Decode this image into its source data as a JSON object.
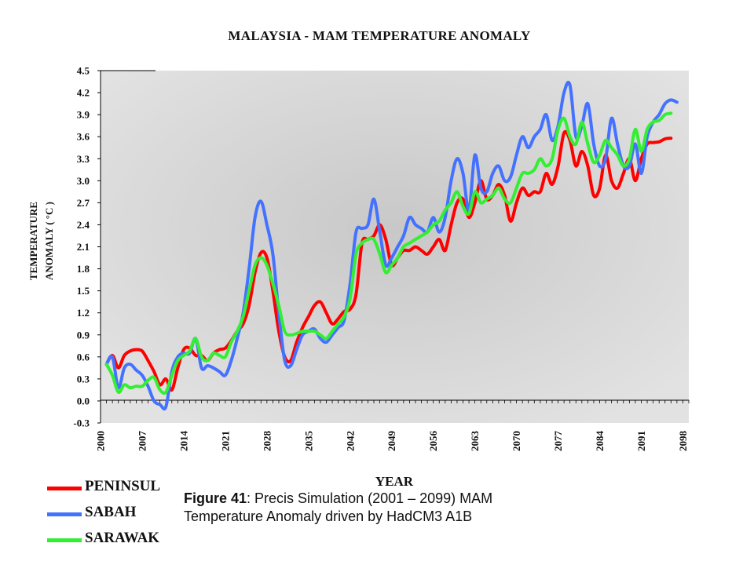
{
  "chart_data": {
    "type": "line",
    "title": "MALAYSIA - MAM TEMPERATURE ANOMALY",
    "ylabel_lines": [
      "TEMPERATURE",
      "ANOMALY ( °C )"
    ],
    "xlabel": "YEAR",
    "ylim": [
      -0.3,
      4.5
    ],
    "xlim": [
      2000,
      2099
    ],
    "yticks": [
      "-0.3",
      "0.0",
      "0.3",
      "0.6",
      "0.9",
      "1.2",
      "1.5",
      "1.8",
      "2.1",
      "2.4",
      "2.7",
      "3.0",
      "3.3",
      "3.6",
      "3.9",
      "4.2",
      "4.5"
    ],
    "xticks": [
      "2000",
      "2007",
      "2014",
      "2021",
      "2028",
      "2035",
      "2042",
      "2049",
      "2056",
      "2063",
      "2070",
      "2077",
      "2084",
      "2091",
      "2098"
    ],
    "series": [
      {
        "name": "PENINSUL",
        "color": "#ff0000",
        "points": [
          [
            2001,
            0.5
          ],
          [
            2002,
            0.62
          ],
          [
            2003,
            0.45
          ],
          [
            2004,
            0.62
          ],
          [
            2005,
            0.68
          ],
          [
            2006,
            0.7
          ],
          [
            2007,
            0.68
          ],
          [
            2008,
            0.55
          ],
          [
            2009,
            0.4
          ],
          [
            2010,
            0.22
          ],
          [
            2011,
            0.3
          ],
          [
            2012,
            0.15
          ],
          [
            2013,
            0.45
          ],
          [
            2014,
            0.7
          ],
          [
            2015,
            0.72
          ],
          [
            2016,
            0.62
          ],
          [
            2017,
            0.62
          ],
          [
            2018,
            0.55
          ],
          [
            2019,
            0.65
          ],
          [
            2020,
            0.7
          ],
          [
            2021,
            0.72
          ],
          [
            2022,
            0.82
          ],
          [
            2023,
            0.95
          ],
          [
            2024,
            1.05
          ],
          [
            2025,
            1.3
          ],
          [
            2026,
            1.75
          ],
          [
            2027,
            2.02
          ],
          [
            2028,
            1.95
          ],
          [
            2029,
            1.5
          ],
          [
            2030,
            0.95
          ],
          [
            2031,
            0.6
          ],
          [
            2032,
            0.55
          ],
          [
            2033,
            0.8
          ],
          [
            2034,
            1.0
          ],
          [
            2035,
            1.15
          ],
          [
            2036,
            1.3
          ],
          [
            2037,
            1.35
          ],
          [
            2038,
            1.2
          ],
          [
            2039,
            1.05
          ],
          [
            2040,
            1.12
          ],
          [
            2041,
            1.22
          ],
          [
            2042,
            1.25
          ],
          [
            2043,
            1.45
          ],
          [
            2044,
            2.15
          ],
          [
            2045,
            2.2
          ],
          [
            2046,
            2.25
          ],
          [
            2047,
            2.4
          ],
          [
            2048,
            2.2
          ],
          [
            2049,
            1.85
          ],
          [
            2050,
            1.95
          ],
          [
            2051,
            2.05
          ],
          [
            2052,
            2.05
          ],
          [
            2053,
            2.1
          ],
          [
            2054,
            2.05
          ],
          [
            2055,
            2.0
          ],
          [
            2056,
            2.1
          ],
          [
            2057,
            2.2
          ],
          [
            2058,
            2.05
          ],
          [
            2059,
            2.4
          ],
          [
            2060,
            2.7
          ],
          [
            2061,
            2.75
          ],
          [
            2062,
            2.5
          ],
          [
            2063,
            2.7
          ],
          [
            2064,
            3.0
          ],
          [
            2065,
            2.75
          ],
          [
            2066,
            2.8
          ],
          [
            2067,
            2.95
          ],
          [
            2068,
            2.8
          ],
          [
            2069,
            2.45
          ],
          [
            2070,
            2.7
          ],
          [
            2071,
            2.9
          ],
          [
            2072,
            2.8
          ],
          [
            2073,
            2.85
          ],
          [
            2074,
            2.85
          ],
          [
            2075,
            3.1
          ],
          [
            2076,
            2.95
          ],
          [
            2077,
            3.2
          ],
          [
            2078,
            3.65
          ],
          [
            2079,
            3.55
          ],
          [
            2080,
            3.2
          ],
          [
            2081,
            3.4
          ],
          [
            2082,
            3.2
          ],
          [
            2083,
            2.8
          ],
          [
            2084,
            2.9
          ],
          [
            2085,
            3.35
          ],
          [
            2086,
            3.0
          ],
          [
            2087,
            2.9
          ],
          [
            2088,
            3.1
          ],
          [
            2089,
            3.3
          ],
          [
            2090,
            3.0
          ],
          [
            2091,
            3.3
          ],
          [
            2092,
            3.5
          ],
          [
            2093,
            3.52
          ],
          [
            2094,
            3.53
          ],
          [
            2095,
            3.57
          ],
          [
            2096,
            3.58
          ]
        ]
      },
      {
        "name": "SABAH",
        "color": "#4472ff",
        "points": [
          [
            2001,
            0.5
          ],
          [
            2002,
            0.6
          ],
          [
            2003,
            0.18
          ],
          [
            2004,
            0.45
          ],
          [
            2005,
            0.5
          ],
          [
            2006,
            0.42
          ],
          [
            2007,
            0.35
          ],
          [
            2008,
            0.2
          ],
          [
            2009,
            0.0
          ],
          [
            2010,
            -0.05
          ],
          [
            2011,
            -0.08
          ],
          [
            2012,
            0.4
          ],
          [
            2013,
            0.6
          ],
          [
            2014,
            0.65
          ],
          [
            2015,
            0.65
          ],
          [
            2016,
            0.85
          ],
          [
            2017,
            0.45
          ],
          [
            2018,
            0.48
          ],
          [
            2019,
            0.45
          ],
          [
            2020,
            0.4
          ],
          [
            2021,
            0.35
          ],
          [
            2022,
            0.55
          ],
          [
            2023,
            0.85
          ],
          [
            2024,
            1.2
          ],
          [
            2025,
            1.8
          ],
          [
            2026,
            2.5
          ],
          [
            2027,
            2.72
          ],
          [
            2028,
            2.4
          ],
          [
            2029,
            2.0
          ],
          [
            2030,
            1.2
          ],
          [
            2031,
            0.55
          ],
          [
            2032,
            0.48
          ],
          [
            2033,
            0.7
          ],
          [
            2034,
            0.9
          ],
          [
            2035,
            0.95
          ],
          [
            2036,
            0.98
          ],
          [
            2037,
            0.85
          ],
          [
            2038,
            0.8
          ],
          [
            2039,
            0.9
          ],
          [
            2040,
            1.0
          ],
          [
            2041,
            1.1
          ],
          [
            2042,
            1.6
          ],
          [
            2043,
            2.3
          ],
          [
            2044,
            2.35
          ],
          [
            2045,
            2.4
          ],
          [
            2046,
            2.75
          ],
          [
            2047,
            2.3
          ],
          [
            2048,
            1.85
          ],
          [
            2049,
            1.95
          ],
          [
            2050,
            2.1
          ],
          [
            2051,
            2.25
          ],
          [
            2052,
            2.5
          ],
          [
            2053,
            2.4
          ],
          [
            2054,
            2.35
          ],
          [
            2055,
            2.3
          ],
          [
            2056,
            2.5
          ],
          [
            2057,
            2.3
          ],
          [
            2058,
            2.5
          ],
          [
            2059,
            3.0
          ],
          [
            2060,
            3.3
          ],
          [
            2061,
            3.1
          ],
          [
            2062,
            2.6
          ],
          [
            2063,
            3.35
          ],
          [
            2064,
            2.9
          ],
          [
            2065,
            2.85
          ],
          [
            2066,
            3.1
          ],
          [
            2067,
            3.2
          ],
          [
            2068,
            3.0
          ],
          [
            2069,
            3.05
          ],
          [
            2070,
            3.35
          ],
          [
            2071,
            3.6
          ],
          [
            2072,
            3.45
          ],
          [
            2073,
            3.6
          ],
          [
            2074,
            3.7
          ],
          [
            2075,
            3.9
          ],
          [
            2076,
            3.55
          ],
          [
            2077,
            3.75
          ],
          [
            2078,
            4.2
          ],
          [
            2079,
            4.3
          ],
          [
            2080,
            3.6
          ],
          [
            2081,
            3.75
          ],
          [
            2082,
            4.05
          ],
          [
            2083,
            3.5
          ],
          [
            2084,
            3.2
          ],
          [
            2085,
            3.3
          ],
          [
            2086,
            3.85
          ],
          [
            2087,
            3.5
          ],
          [
            2088,
            3.2
          ],
          [
            2089,
            3.2
          ],
          [
            2090,
            3.5
          ],
          [
            2091,
            3.1
          ],
          [
            2092,
            3.6
          ],
          [
            2093,
            3.8
          ],
          [
            2094,
            3.9
          ],
          [
            2095,
            4.05
          ],
          [
            2096,
            4.1
          ],
          [
            2097,
            4.07
          ]
        ]
      },
      {
        "name": "SARAWAK",
        "color": "#33ee33",
        "points": [
          [
            2001,
            0.5
          ],
          [
            2002,
            0.35
          ],
          [
            2003,
            0.12
          ],
          [
            2004,
            0.22
          ],
          [
            2005,
            0.18
          ],
          [
            2006,
            0.2
          ],
          [
            2007,
            0.2
          ],
          [
            2008,
            0.28
          ],
          [
            2009,
            0.32
          ],
          [
            2010,
            0.15
          ],
          [
            2011,
            0.12
          ],
          [
            2012,
            0.35
          ],
          [
            2013,
            0.55
          ],
          [
            2014,
            0.62
          ],
          [
            2015,
            0.68
          ],
          [
            2016,
            0.85
          ],
          [
            2017,
            0.6
          ],
          [
            2018,
            0.55
          ],
          [
            2019,
            0.65
          ],
          [
            2020,
            0.62
          ],
          [
            2021,
            0.6
          ],
          [
            2022,
            0.8
          ],
          [
            2023,
            0.95
          ],
          [
            2024,
            1.15
          ],
          [
            2025,
            1.5
          ],
          [
            2026,
            1.85
          ],
          [
            2027,
            1.95
          ],
          [
            2028,
            1.85
          ],
          [
            2029,
            1.6
          ],
          [
            2030,
            1.3
          ],
          [
            2031,
            0.95
          ],
          [
            2032,
            0.9
          ],
          [
            2033,
            0.92
          ],
          [
            2034,
            0.95
          ],
          [
            2035,
            0.95
          ],
          [
            2036,
            0.95
          ],
          [
            2037,
            0.9
          ],
          [
            2038,
            0.85
          ],
          [
            2039,
            0.95
          ],
          [
            2040,
            1.05
          ],
          [
            2041,
            1.15
          ],
          [
            2042,
            1.4
          ],
          [
            2043,
            2.0
          ],
          [
            2044,
            2.15
          ],
          [
            2045,
            2.2
          ],
          [
            2046,
            2.2
          ],
          [
            2047,
            2.0
          ],
          [
            2048,
            1.75
          ],
          [
            2049,
            1.85
          ],
          [
            2050,
            1.95
          ],
          [
            2051,
            2.1
          ],
          [
            2052,
            2.15
          ],
          [
            2053,
            2.2
          ],
          [
            2054,
            2.25
          ],
          [
            2055,
            2.3
          ],
          [
            2056,
            2.4
          ],
          [
            2057,
            2.45
          ],
          [
            2058,
            2.6
          ],
          [
            2059,
            2.7
          ],
          [
            2060,
            2.85
          ],
          [
            2061,
            2.65
          ],
          [
            2062,
            2.55
          ],
          [
            2063,
            2.85
          ],
          [
            2064,
            2.7
          ],
          [
            2065,
            2.75
          ],
          [
            2066,
            2.8
          ],
          [
            2067,
            2.9
          ],
          [
            2068,
            2.75
          ],
          [
            2069,
            2.7
          ],
          [
            2070,
            2.9
          ],
          [
            2071,
            3.1
          ],
          [
            2072,
            3.1
          ],
          [
            2073,
            3.15
          ],
          [
            2074,
            3.3
          ],
          [
            2075,
            3.2
          ],
          [
            2076,
            3.3
          ],
          [
            2077,
            3.7
          ],
          [
            2078,
            3.85
          ],
          [
            2079,
            3.6
          ],
          [
            2080,
            3.5
          ],
          [
            2081,
            3.8
          ],
          [
            2082,
            3.5
          ],
          [
            2083,
            3.25
          ],
          [
            2084,
            3.35
          ],
          [
            2085,
            3.55
          ],
          [
            2086,
            3.45
          ],
          [
            2087,
            3.35
          ],
          [
            2088,
            3.2
          ],
          [
            2089,
            3.3
          ],
          [
            2090,
            3.7
          ],
          [
            2091,
            3.4
          ],
          [
            2092,
            3.7
          ],
          [
            2093,
            3.8
          ],
          [
            2094,
            3.82
          ],
          [
            2095,
            3.9
          ],
          [
            2096,
            3.92
          ]
        ]
      }
    ]
  },
  "caption": {
    "label": "Figure 41",
    "rest": ": Precis Simulation (2001 – 2099) MAM",
    "line2": "Temperature Anomaly driven by HadCM3 A1B"
  },
  "colors": {
    "plot_bg": "#d6d6d6",
    "axis": "#000000"
  }
}
